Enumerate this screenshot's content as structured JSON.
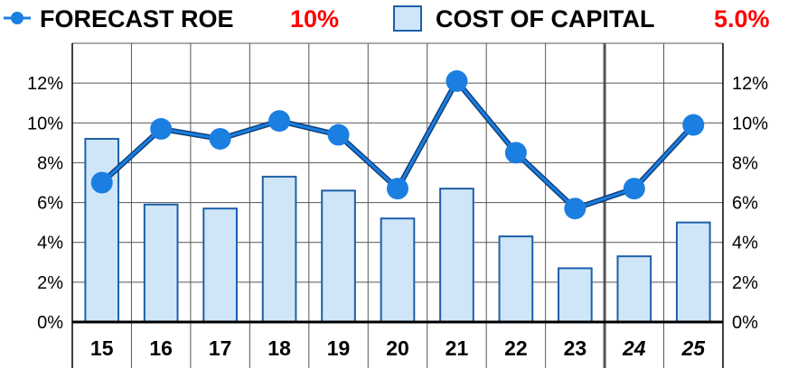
{
  "legend": {
    "line_label": "FORECAST ROE",
    "line_value": "10%",
    "bar_label": "COST OF CAPITAL",
    "bar_value": "5.0%"
  },
  "colors": {
    "line": "#1a7fe0",
    "bar_fill": "#cfe6f8",
    "bar_stroke": "#1d5fa8",
    "highlight": "#ff0000",
    "grid": "#555555"
  },
  "chart_data": {
    "type": "bar",
    "categories": [
      "15",
      "16",
      "17",
      "18",
      "19",
      "20",
      "21",
      "22",
      "23",
      "24",
      "25"
    ],
    "italic_categories": [
      "24",
      "25"
    ],
    "series": [
      {
        "name": "COST OF CAPITAL",
        "type": "bar",
        "values": [
          9.2,
          5.9,
          5.7,
          7.3,
          6.6,
          5.2,
          6.7,
          4.3,
          2.7,
          3.3,
          5.0
        ]
      },
      {
        "name": "FORECAST ROE",
        "type": "line",
        "values": [
          7.0,
          9.7,
          9.2,
          10.1,
          9.4,
          6.7,
          12.1,
          8.5,
          5.7,
          6.7,
          9.9
        ]
      }
    ],
    "yticks": [
      "0%",
      "2%",
      "4%",
      "6%",
      "8%",
      "10%",
      "12%"
    ],
    "ylim": [
      0,
      14
    ],
    "grid": true,
    "legend_position": "top"
  }
}
